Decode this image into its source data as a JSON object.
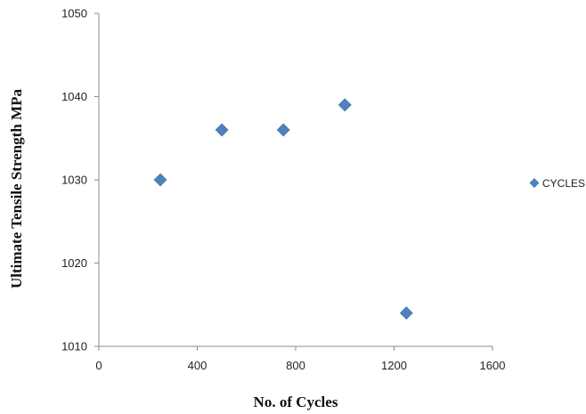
{
  "chart_data": {
    "type": "scatter",
    "title": "",
    "xlabel": "No. of Cycles",
    "ylabel": "Ultimate Tensile Strength MPa",
    "xlim": [
      0,
      1600
    ],
    "ylim": [
      1010,
      1050
    ],
    "xticks": [
      "0",
      "400",
      "800",
      "1200",
      "1600"
    ],
    "yticks": [
      "1010",
      "1020",
      "1030",
      "1040",
      "1050"
    ],
    "grid": false,
    "legend_position": "right",
    "series": [
      {
        "name": "CYCLES",
        "color": "#4f81bd",
        "marker": "diamond",
        "x": [
          250,
          500,
          750,
          1000,
          1250
        ],
        "y": [
          1030,
          1036,
          1036,
          1039,
          1014
        ]
      }
    ]
  }
}
